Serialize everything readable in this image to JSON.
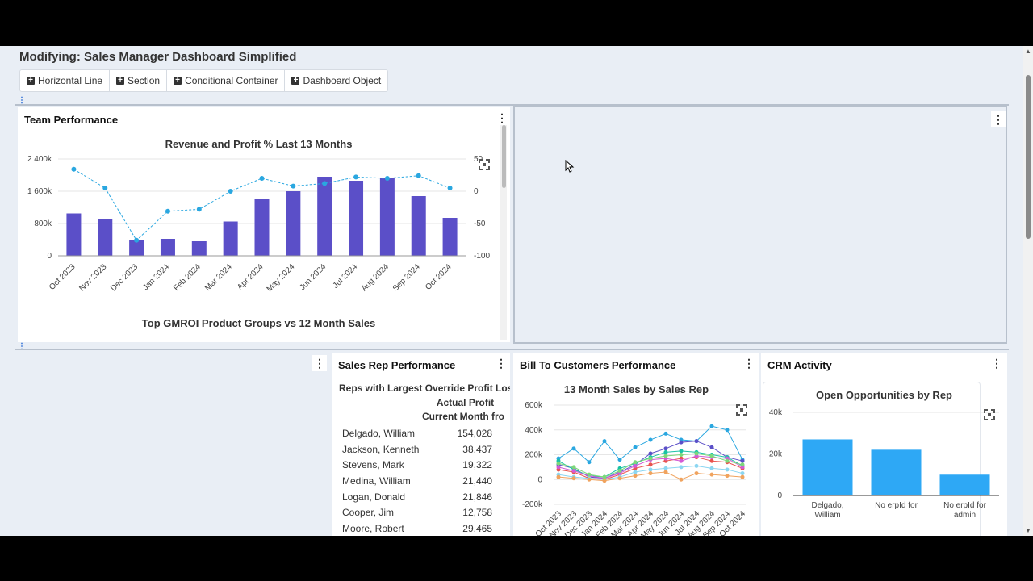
{
  "page": {
    "title": "Modifying: Sales Manager Dashboard Simplified"
  },
  "toolbar": [
    {
      "label": "Horizontal Line"
    },
    {
      "label": "Section"
    },
    {
      "label": "Conditional Container"
    },
    {
      "label": "Dashboard Object"
    }
  ],
  "team_performance": {
    "title": "Team Performance",
    "chart_title": "Revenue and Profit % Last 13 Months",
    "next_chart_title": "Top GMROI Product Groups vs 12 Month Sales"
  },
  "sales_rep": {
    "title": "Sales Rep Performance",
    "table_title": "Reps with Largest Override Profit Los",
    "col_header1": "Actual Profit",
    "col_header2": "Current Month fro",
    "rows": [
      {
        "name": "Delgado, William",
        "value": "154,028"
      },
      {
        "name": "Jackson, Kenneth",
        "value": "38,437"
      },
      {
        "name": "Stevens, Mark",
        "value": "19,322"
      },
      {
        "name": "Medina, William",
        "value": "21,440"
      },
      {
        "name": "Logan, Donald",
        "value": "21,846"
      },
      {
        "name": "Cooper, Jim",
        "value": "12,758"
      },
      {
        "name": "Moore, Robert",
        "value": "29,465"
      }
    ]
  },
  "bill_to": {
    "title": "Bill To Customers Performance",
    "chart_title": "13 Month Sales by Sales Rep"
  },
  "crm": {
    "title": "CRM Activity",
    "chart_title": "Open Opportunities by Rep"
  },
  "colors": {
    "bar": "#5b4fc8",
    "line": "#2aa7e0",
    "crm_bar": "#2ea8f5"
  },
  "chart_data": [
    {
      "type": "bar",
      "title": "Revenue and Profit % Last 13 Months",
      "categories": [
        "Oct 2023",
        "Nov 2023",
        "Dec 2023",
        "Jan 2024",
        "Feb 2024",
        "Mar 2024",
        "Apr 2024",
        "May 2024",
        "Jun 2024",
        "Jul 2024",
        "Aug 2024",
        "Sep 2024",
        "Oct 2024"
      ],
      "series": [
        {
          "type": "bar",
          "axis": "left",
          "values": [
            1050000,
            920000,
            380000,
            420000,
            360000,
            850000,
            1400000,
            1600000,
            1960000,
            1860000,
            1940000,
            1480000,
            940000
          ]
        },
        {
          "type": "line",
          "axis": "right",
          "values": [
            34,
            5,
            -76,
            -31,
            -28,
            0,
            20,
            8,
            12,
            22,
            20,
            24,
            5
          ]
        }
      ],
      "ylim_left": [
        0,
        2400000
      ],
      "yticks_left": [
        "0",
        "800k",
        "1 600k",
        "2 400k"
      ],
      "ylim_right": [
        -100,
        50
      ],
      "yticks_right": [
        "-100",
        "-50",
        "0",
        "50"
      ]
    },
    {
      "type": "line",
      "title": "13 Month Sales by Sales Rep",
      "categories": [
        "Oct 2023",
        "Nov 2023",
        "Dec 2023",
        "Jan 2024",
        "Feb 2024",
        "Mar 2024",
        "Apr 2024",
        "May 2024",
        "Jun 2024",
        "Jul 2024",
        "Aug 2024",
        "Sep 2024",
        "Oct 2024"
      ],
      "ylim": [
        -200000,
        600000
      ],
      "yticks": [
        "-200k",
        "0",
        "200k",
        "400k",
        "600k"
      ],
      "series": [
        {
          "color": "#2aa7e0",
          "values": [
            170000,
            250000,
            140000,
            310000,
            160000,
            260000,
            320000,
            370000,
            320000,
            310000,
            430000,
            400000,
            160000
          ]
        },
        {
          "color": "#5b4fc8",
          "values": [
            120000,
            90000,
            20000,
            10000,
            60000,
            120000,
            210000,
            250000,
            300000,
            310000,
            260000,
            180000,
            150000
          ]
        },
        {
          "color": "#19c2a6",
          "values": [
            150000,
            80000,
            30000,
            20000,
            90000,
            130000,
            180000,
            220000,
            230000,
            220000,
            200000,
            180000,
            110000
          ]
        },
        {
          "color": "#e8534e",
          "values": [
            80000,
            60000,
            10000,
            0,
            40000,
            90000,
            120000,
            150000,
            170000,
            180000,
            150000,
            140000,
            90000
          ]
        },
        {
          "color": "#d35ad6",
          "values": [
            100000,
            70000,
            30000,
            10000,
            50000,
            110000,
            160000,
            170000,
            150000,
            190000,
            180000,
            170000,
            100000
          ]
        },
        {
          "color": "#8bd6f1",
          "values": [
            40000,
            20000,
            10000,
            0,
            20000,
            60000,
            80000,
            90000,
            100000,
            110000,
            90000,
            80000,
            50000
          ]
        },
        {
          "color": "#7dd87a",
          "values": [
            130000,
            100000,
            40000,
            20000,
            70000,
            140000,
            170000,
            190000,
            200000,
            210000,
            190000,
            150000,
            120000
          ]
        },
        {
          "color": "#f0a35e",
          "values": [
            20000,
            10000,
            0,
            -10000,
            10000,
            30000,
            50000,
            60000,
            0,
            50000,
            40000,
            30000,
            20000
          ]
        }
      ]
    },
    {
      "type": "bar",
      "title": "Open Opportunities by Rep",
      "categories": [
        "Delgado, William",
        "No erpId for",
        "No erpId for admin"
      ],
      "values": [
        27000,
        22000,
        10000
      ],
      "ylim": [
        0,
        40000
      ],
      "yticks": [
        "0",
        "20k",
        "40k"
      ]
    }
  ]
}
